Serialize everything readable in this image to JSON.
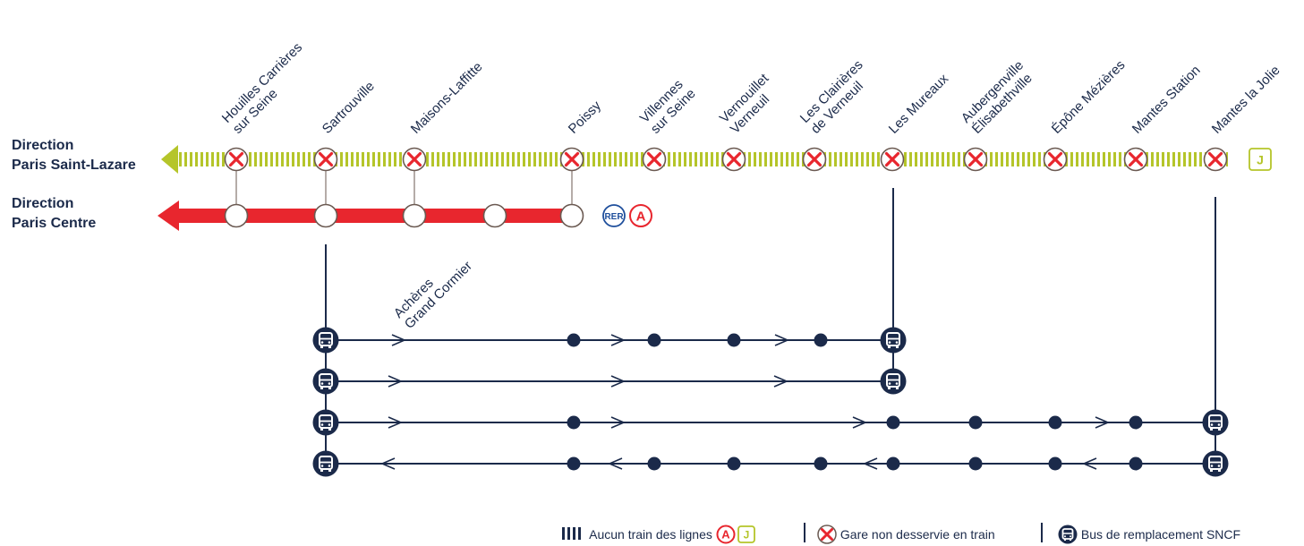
{
  "directions": {
    "saint_lazare": [
      "Direction",
      "Paris Saint-Lazare"
    ],
    "centre": [
      "Direction",
      "Paris Centre"
    ]
  },
  "stations": [
    {
      "id": "houilles",
      "label": [
        "Houilles Carrières",
        "sur Seine"
      ]
    },
    {
      "id": "sartrouville",
      "label": [
        "Sartrouville"
      ]
    },
    {
      "id": "maisons",
      "label": [
        "Maisons-Laffitte"
      ]
    },
    {
      "id": "poissy",
      "label": [
        "Poissy"
      ]
    },
    {
      "id": "villennes",
      "label": [
        "Villennes",
        "sur Seine"
      ]
    },
    {
      "id": "vernouillet",
      "label": [
        "Vernouillet",
        "Verneuil"
      ]
    },
    {
      "id": "clairieres",
      "label": [
        "Les Clairières",
        "de Verneuil"
      ]
    },
    {
      "id": "mureaux",
      "label": [
        "Les Mureaux"
      ]
    },
    {
      "id": "aubergenville",
      "label": [
        "Aubergenville",
        "Élisabethville"
      ]
    },
    {
      "id": "epone",
      "label": [
        "Épône Mézières"
      ]
    },
    {
      "id": "mantes_station",
      "label": [
        "Mantes Station"
      ]
    },
    {
      "id": "mantes_jolie",
      "label": [
        "Mantes la Jolie"
      ]
    }
  ],
  "acheres": {
    "label": [
      "Achères",
      "Grand Cormier"
    ]
  },
  "badges": {
    "rer": "RER",
    "a": "A",
    "j": "J"
  },
  "legend": {
    "no_train": "Aucun train des lignes",
    "not_served": "Gare non desservie en train",
    "bus": "Bus de remplacement SNCF"
  },
  "colors": {
    "line_j": "#b5c52a",
    "rer_a": "#e8262e",
    "navy": "#1b2a4a",
    "rer_blue": "#1f4f9c",
    "cross_red": "#e8262e",
    "station_ring": "#6b5a52"
  }
}
